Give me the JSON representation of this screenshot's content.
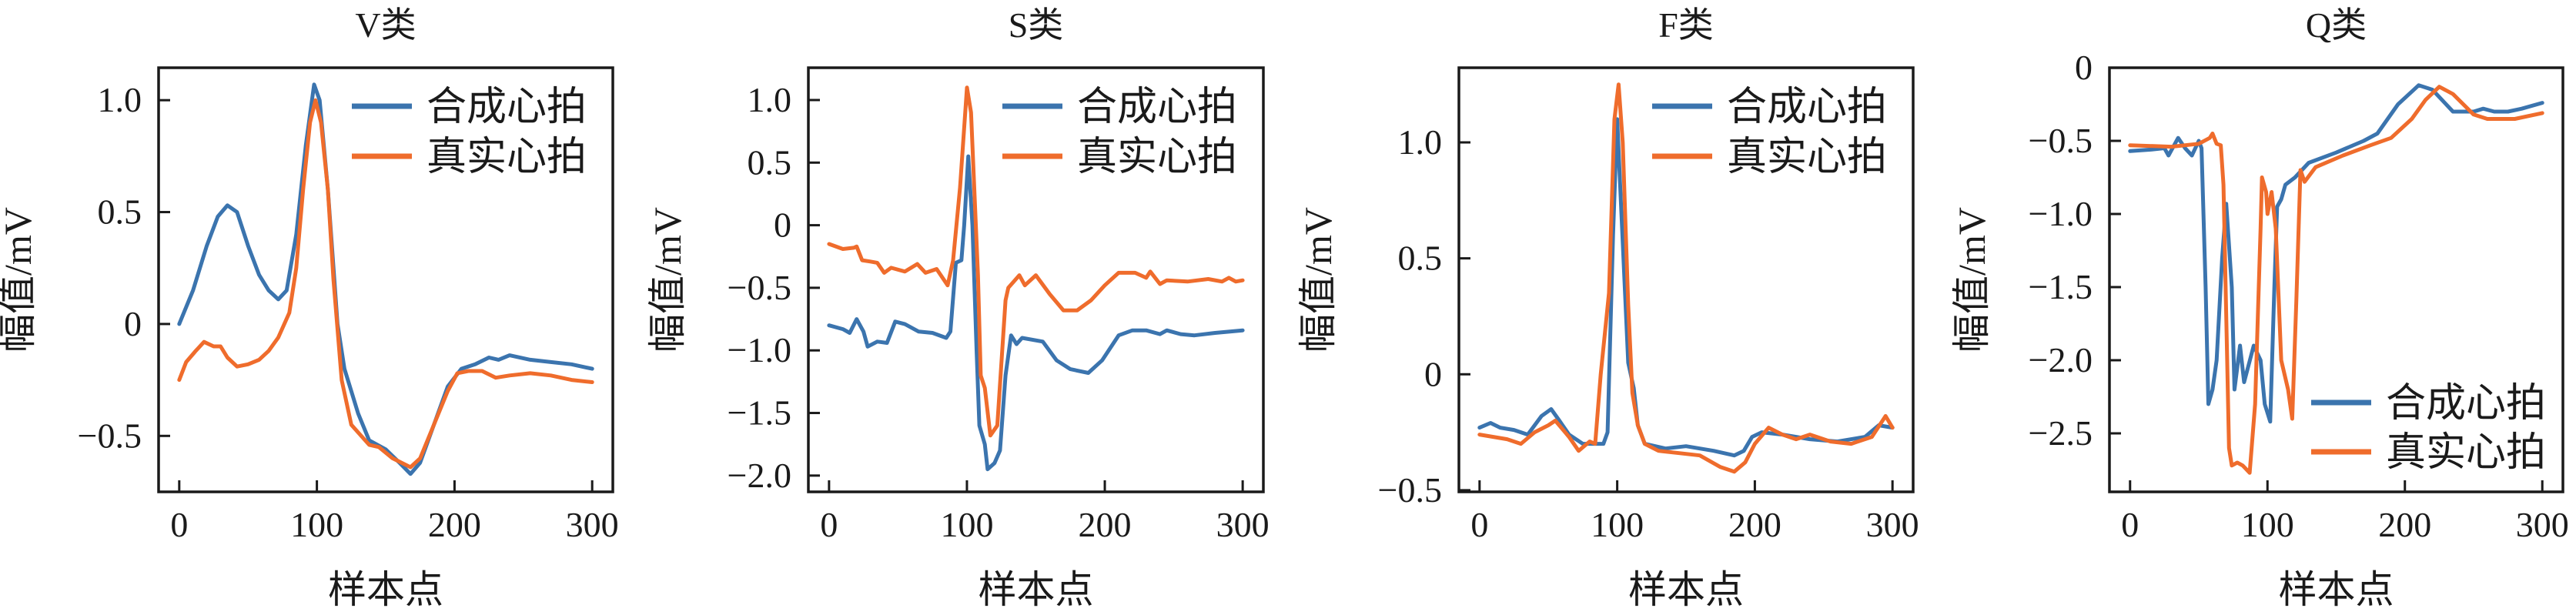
{
  "colors": {
    "synthetic": "#3b74ae",
    "real": "#ef6c2c",
    "axis": "#1a1a1a"
  },
  "chart_data": [
    {
      "type": "line",
      "title": "V类",
      "xlabel": "样本点",
      "ylabel": "幅值/mV",
      "xlim": [
        -15,
        315
      ],
      "ylim": [
        -0.75,
        1.145
      ],
      "xticks": [
        0,
        100,
        200,
        300
      ],
      "xtick_labels": [
        "0",
        "100",
        "200",
        "300"
      ],
      "yticks": [
        1.0,
        0.5,
        0,
        -0.5
      ],
      "ytick_labels": [
        "1.0",
        "0.5",
        "0",
        "−0.5"
      ],
      "legend_position": "top-right",
      "series": [
        {
          "name": "合成心拍",
          "key": "synthetic",
          "x": [
            0,
            10,
            20,
            28,
            35,
            42,
            50,
            58,
            65,
            72,
            78,
            85,
            92,
            98,
            102,
            108,
            115,
            120,
            130,
            138,
            150,
            160,
            168,
            175,
            185,
            195,
            205,
            215,
            225,
            232,
            240,
            255,
            270,
            285,
            300
          ],
          "y": [
            0,
            0.15,
            0.35,
            0.48,
            0.53,
            0.5,
            0.35,
            0.22,
            0.15,
            0.11,
            0.15,
            0.4,
            0.8,
            1.07,
            1.0,
            0.6,
            0.0,
            -0.2,
            -0.4,
            -0.52,
            -0.56,
            -0.62,
            -0.67,
            -0.62,
            -0.45,
            -0.28,
            -0.2,
            -0.18,
            -0.15,
            -0.16,
            -0.14,
            -0.16,
            -0.17,
            -0.18,
            -0.2
          ]
        },
        {
          "name": "真实心拍",
          "key": "real",
          "x": [
            0,
            5,
            12,
            18,
            25,
            30,
            35,
            42,
            50,
            58,
            65,
            72,
            80,
            85,
            90,
            95,
            99,
            103,
            108,
            112,
            118,
            125,
            138,
            145,
            155,
            168,
            175,
            185,
            195,
            202,
            210,
            220,
            230,
            240,
            255,
            270,
            285,
            300
          ],
          "y": [
            -0.25,
            -0.17,
            -0.12,
            -0.08,
            -0.1,
            -0.1,
            -0.15,
            -0.19,
            -0.18,
            -0.16,
            -0.12,
            -0.06,
            0.05,
            0.25,
            0.6,
            0.9,
            1.0,
            0.9,
            0.6,
            0.2,
            -0.25,
            -0.45,
            -0.54,
            -0.55,
            -0.6,
            -0.64,
            -0.6,
            -0.45,
            -0.3,
            -0.22,
            -0.21,
            -0.21,
            -0.24,
            -0.23,
            -0.22,
            -0.23,
            -0.25,
            -0.26
          ]
        }
      ]
    },
    {
      "type": "line",
      "title": "S类",
      "xlabel": "样本点",
      "ylabel": "幅值/mV",
      "xlim": [
        -15,
        315
      ],
      "ylim": [
        -2.13,
        1.258
      ],
      "xticks": [
        0,
        100,
        200,
        300
      ],
      "xtick_labels": [
        "0",
        "100",
        "200",
        "300"
      ],
      "yticks": [
        1.0,
        0.5,
        0,
        -0.5,
        -1.0,
        -1.5,
        -2.0
      ],
      "ytick_labels": [
        "1.0",
        "0.5",
        "0",
        "−0.5",
        "−1.0",
        "−1.5",
        "−2.0"
      ],
      "legend_position": "top-right",
      "series": [
        {
          "name": "合成心拍",
          "key": "synthetic",
          "x": [
            0,
            10,
            15,
            20,
            25,
            28,
            35,
            42,
            48,
            55,
            65,
            75,
            85,
            88,
            92,
            96,
            98,
            101,
            104,
            107,
            109,
            113,
            115,
            120,
            124,
            128,
            132,
            136,
            140,
            155,
            165,
            175,
            188,
            198,
            210,
            220,
            230,
            240,
            245,
            255,
            265,
            280,
            300
          ],
          "y": [
            -0.8,
            -0.83,
            -0.86,
            -0.75,
            -0.85,
            -0.97,
            -0.93,
            -0.94,
            -0.77,
            -0.79,
            -0.85,
            -0.86,
            -0.9,
            -0.85,
            -0.3,
            -0.28,
            0.0,
            0.55,
            0.0,
            -1.0,
            -1.6,
            -1.75,
            -1.95,
            -1.9,
            -1.8,
            -1.2,
            -0.88,
            -0.95,
            -0.9,
            -0.93,
            -1.08,
            -1.15,
            -1.18,
            -1.08,
            -0.88,
            -0.84,
            -0.84,
            -0.87,
            -0.84,
            -0.87,
            -0.88,
            -0.86,
            -0.84
          ]
        },
        {
          "name": "真实心拍",
          "key": "real",
          "x": [
            0,
            10,
            18,
            20,
            24,
            30,
            35,
            40,
            45,
            55,
            64,
            70,
            78,
            86,
            90,
            95,
            100,
            103,
            108,
            110,
            113,
            117,
            122,
            128,
            130,
            138,
            142,
            150,
            160,
            170,
            180,
            190,
            200,
            210,
            222,
            230,
            233,
            240,
            245,
            260,
            275,
            285,
            290,
            295,
            300
          ],
          "y": [
            -0.15,
            -0.19,
            -0.18,
            -0.17,
            -0.28,
            -0.29,
            -0.3,
            -0.38,
            -0.34,
            -0.37,
            -0.31,
            -0.38,
            -0.35,
            -0.48,
            -0.28,
            0.3,
            1.1,
            0.9,
            -0.4,
            -1.2,
            -1.3,
            -1.68,
            -1.6,
            -0.6,
            -0.5,
            -0.4,
            -0.48,
            -0.4,
            -0.55,
            -0.68,
            -0.68,
            -0.6,
            -0.48,
            -0.38,
            -0.38,
            -0.42,
            -0.37,
            -0.47,
            -0.44,
            -0.45,
            -0.43,
            -0.45,
            -0.42,
            -0.45,
            -0.44
          ]
        }
      ]
    },
    {
      "type": "line",
      "title": "F类",
      "xlabel": "样本点",
      "ylabel": "幅值/mV",
      "xlim": [
        -15,
        315
      ],
      "ylim": [
        -0.507,
        1.322
      ],
      "xticks": [
        0,
        100,
        200,
        300
      ],
      "xtick_labels": [
        "0",
        "100",
        "200",
        "300"
      ],
      "yticks": [
        1.0,
        0.5,
        0,
        -0.5
      ],
      "ytick_labels": [
        "1.0",
        "0.5",
        "0",
        "−0.5"
      ],
      "legend_position": "top-right",
      "series": [
        {
          "name": "合成心拍",
          "key": "synthetic",
          "x": [
            0,
            8,
            15,
            25,
            35,
            45,
            52,
            58,
            65,
            75,
            90,
            93,
            97,
            100,
            103,
            108,
            112,
            115,
            120,
            135,
            150,
            170,
            185,
            192,
            198,
            205,
            220,
            240,
            260,
            280,
            290,
            300
          ],
          "y": [
            -0.23,
            -0.21,
            -0.23,
            -0.24,
            -0.26,
            -0.18,
            -0.15,
            -0.2,
            -0.26,
            -0.3,
            -0.3,
            -0.25,
            0.6,
            1.1,
            0.7,
            0.05,
            -0.06,
            -0.22,
            -0.3,
            -0.32,
            -0.31,
            -0.33,
            -0.35,
            -0.33,
            -0.27,
            -0.25,
            -0.26,
            -0.28,
            -0.29,
            -0.27,
            -0.22,
            -0.23
          ]
        },
        {
          "name": "真实心拍",
          "key": "real",
          "x": [
            0,
            10,
            20,
            30,
            40,
            50,
            55,
            65,
            72,
            80,
            84,
            88,
            94,
            98,
            101,
            104,
            108,
            111,
            115,
            120,
            130,
            145,
            160,
            175,
            185,
            193,
            200,
            210,
            220,
            230,
            240,
            255,
            270,
            285,
            295,
            300
          ],
          "y": [
            -0.26,
            -0.27,
            -0.28,
            -0.3,
            -0.25,
            -0.22,
            -0.2,
            -0.27,
            -0.33,
            -0.29,
            -0.3,
            0.0,
            0.35,
            1.1,
            1.25,
            1.0,
            0.3,
            -0.08,
            -0.22,
            -0.3,
            -0.33,
            -0.34,
            -0.35,
            -0.4,
            -0.42,
            -0.38,
            -0.3,
            -0.23,
            -0.26,
            -0.28,
            -0.26,
            -0.29,
            -0.3,
            -0.27,
            -0.18,
            -0.23
          ]
        }
      ]
    },
    {
      "type": "line",
      "title": "Q类",
      "xlabel": "样本点",
      "ylabel": "幅值/mV",
      "xlim": [
        -15,
        315
      ],
      "ylim": [
        -2.9,
        0
      ],
      "xticks": [
        0,
        100,
        200,
        300
      ],
      "xtick_labels": [
        "0",
        "100",
        "200",
        "300"
      ],
      "yticks": [
        0,
        -0.5,
        -1.0,
        -1.5,
        -2.0,
        -2.5
      ],
      "ytick_labels": [
        "0",
        "−0.5",
        "−1.0",
        "−1.5",
        "−2.0",
        "−2.5"
      ],
      "legend_position": "lower-right",
      "series": [
        {
          "name": "合成心拍",
          "key": "synthetic",
          "x": [
            0,
            15,
            25,
            28,
            35,
            40,
            45,
            50,
            52,
            55,
            57,
            60,
            63,
            67,
            70,
            74,
            76,
            80,
            83,
            90,
            95,
            98,
            102,
            105,
            107,
            110,
            113,
            120,
            130,
            150,
            170,
            180,
            195,
            210,
            220,
            235,
            250,
            257,
            265,
            275,
            285,
            300
          ],
          "y": [
            -0.57,
            -0.56,
            -0.55,
            -0.6,
            -0.48,
            -0.55,
            -0.6,
            -0.5,
            -0.55,
            -1.5,
            -2.3,
            -2.2,
            -2.0,
            -1.3,
            -0.93,
            -1.5,
            -2.2,
            -1.9,
            -2.15,
            -1.9,
            -2.0,
            -2.3,
            -2.42,
            -1.5,
            -0.95,
            -0.9,
            -0.8,
            -0.75,
            -0.65,
            -0.58,
            -0.5,
            -0.45,
            -0.25,
            -0.12,
            -0.15,
            -0.3,
            -0.3,
            -0.28,
            -0.3,
            -0.3,
            -0.28,
            -0.24
          ]
        },
        {
          "name": "真实心拍",
          "key": "real",
          "x": [
            0,
            30,
            50,
            58,
            60,
            63,
            66,
            68,
            70,
            72,
            74,
            78,
            82,
            87,
            91,
            95,
            96,
            99,
            100,
            103,
            106,
            110,
            115,
            118,
            121,
            124,
            127,
            135,
            155,
            175,
            190,
            205,
            215,
            225,
            235,
            250,
            260,
            280,
            300
          ],
          "y": [
            -0.53,
            -0.54,
            -0.52,
            -0.48,
            -0.45,
            -0.52,
            -0.53,
            -0.8,
            -1.7,
            -2.6,
            -2.72,
            -2.7,
            -2.72,
            -2.77,
            -2.3,
            -1.1,
            -0.75,
            -0.85,
            -1.0,
            -0.85,
            -1.1,
            -2.0,
            -2.2,
            -2.4,
            -1.6,
            -0.7,
            -0.78,
            -0.68,
            -0.6,
            -0.53,
            -0.48,
            -0.35,
            -0.22,
            -0.13,
            -0.18,
            -0.32,
            -0.35,
            -0.35,
            -0.31
          ]
        }
      ]
    }
  ]
}
